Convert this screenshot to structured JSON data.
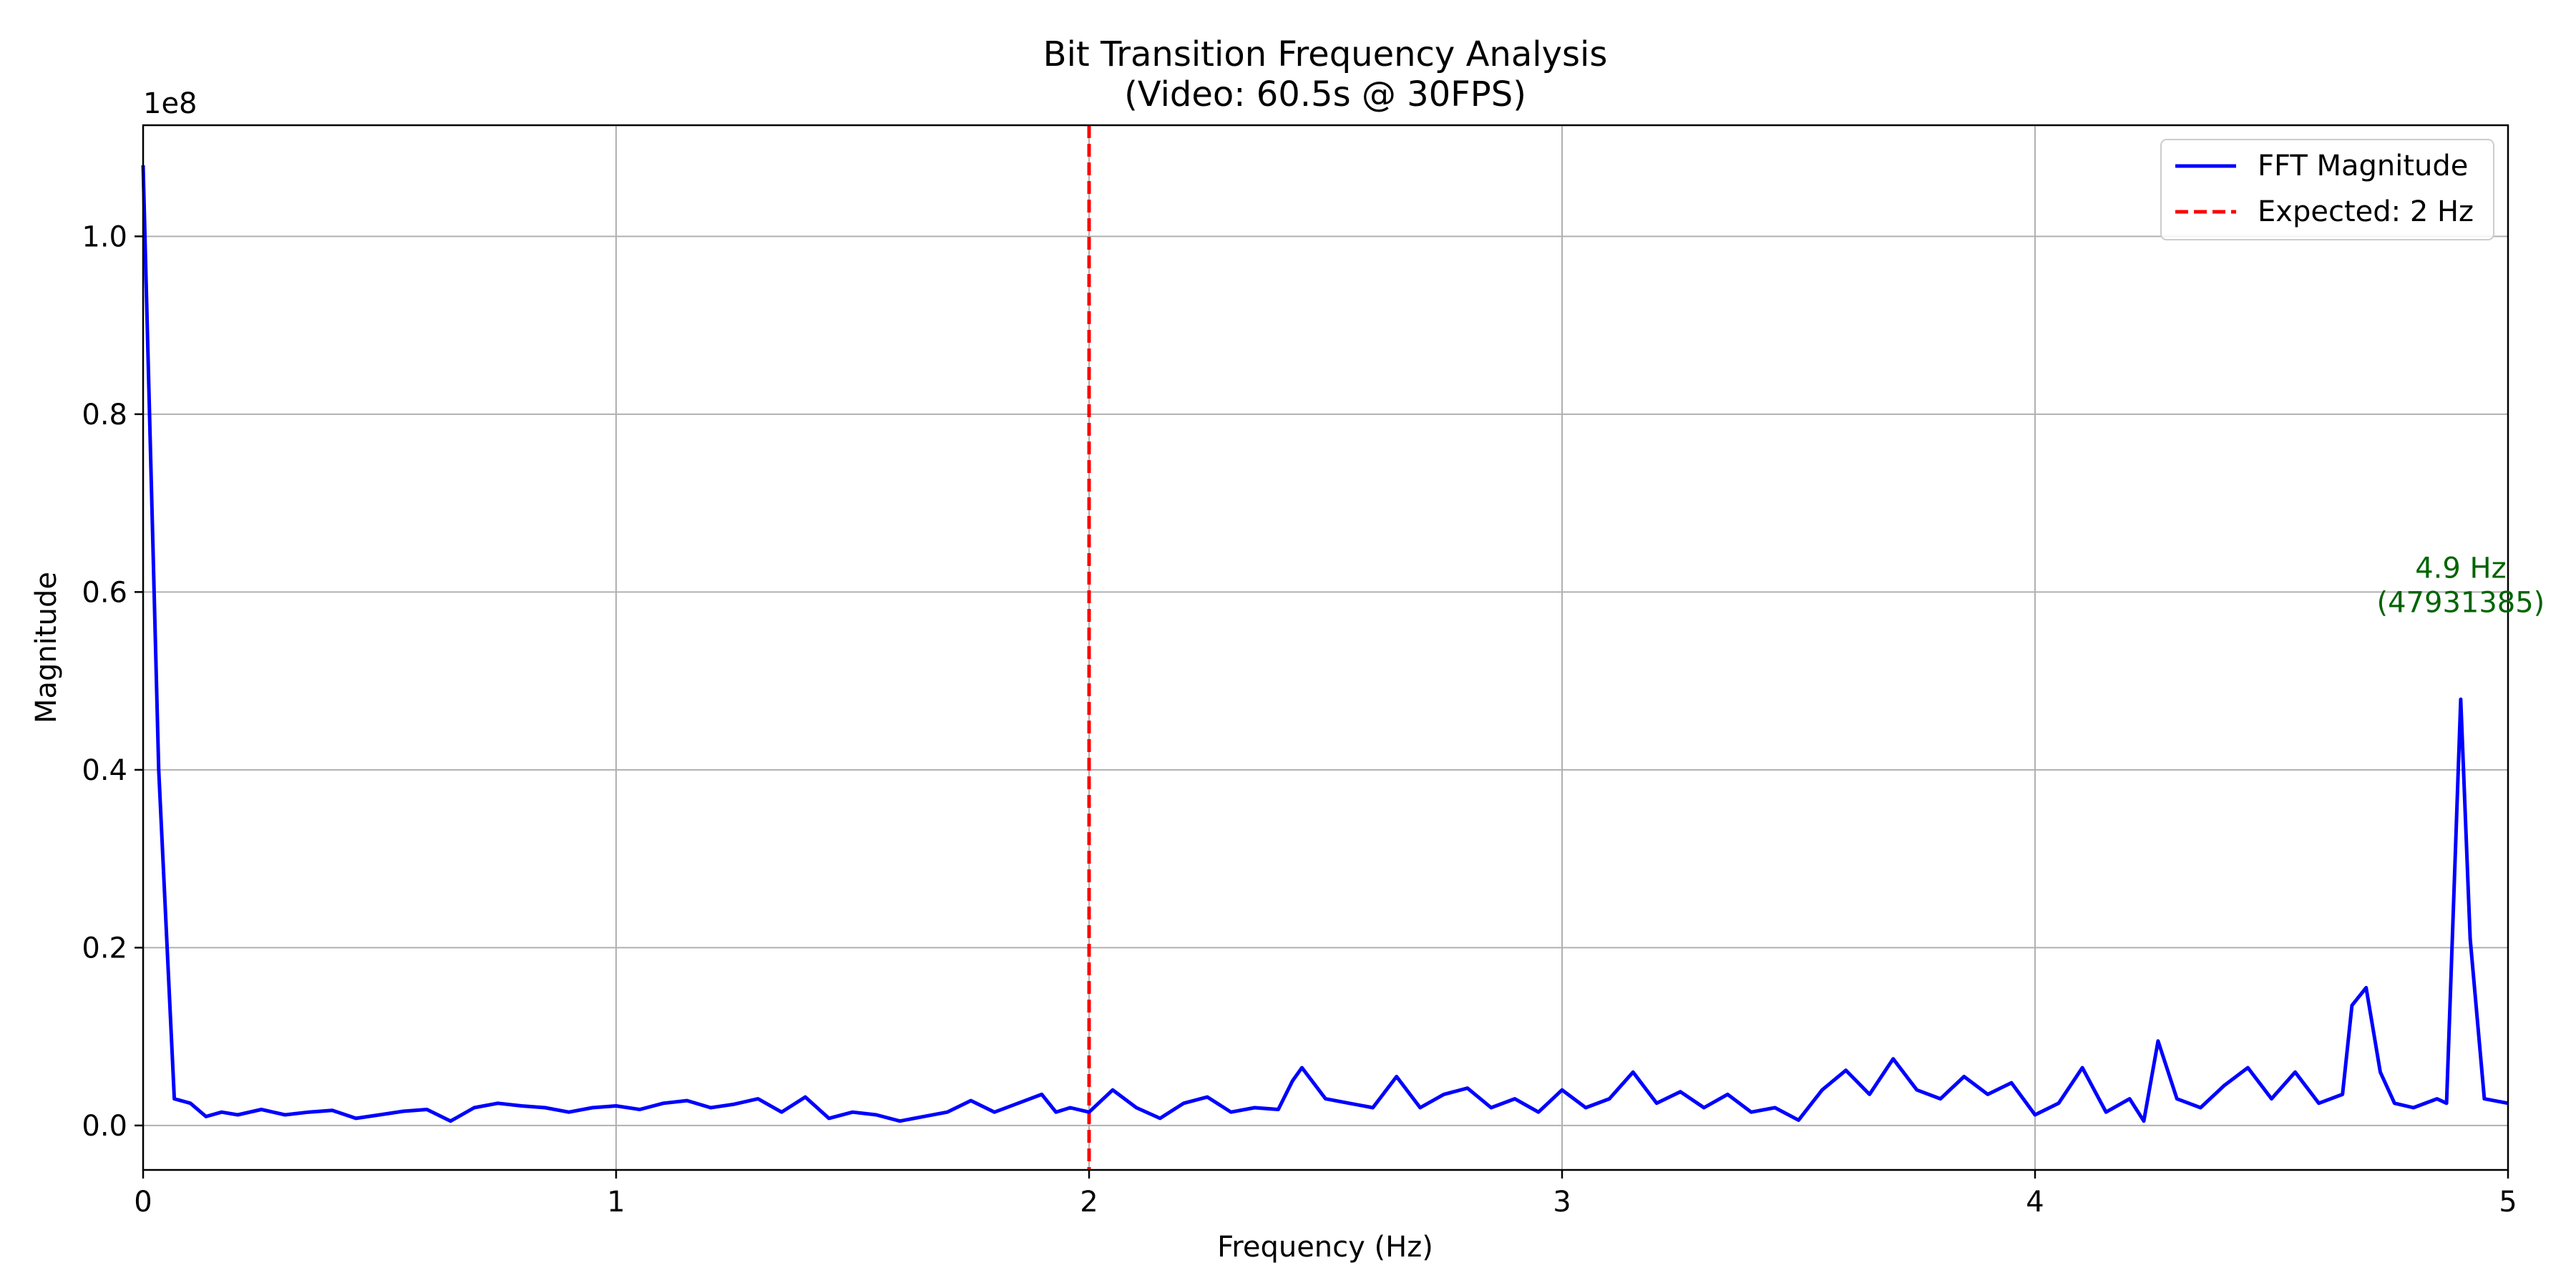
{
  "chart_data": {
    "type": "line",
    "title": "Bit Transition Frequency Analysis",
    "subtitle": "(Video: 60.5s @ 30FPS)",
    "xlabel": "Frequency (Hz)",
    "ylabel": "Magnitude",
    "y_offset_label": "1e8",
    "xlim": [
      0,
      5
    ],
    "ylim": [
      -5000000,
      112500000
    ],
    "xticks": [
      0,
      1,
      2,
      3,
      4,
      5
    ],
    "xtick_labels": [
      "0",
      "1",
      "2",
      "3",
      "4",
      "5"
    ],
    "yticks": [
      0,
      20000000,
      40000000,
      60000000,
      80000000,
      100000000
    ],
    "ytick_labels": [
      "0.0",
      "0.2",
      "0.4",
      "0.6",
      "0.8",
      "1.0"
    ],
    "grid": true,
    "legend_position": "top-right",
    "series": [
      {
        "name": "FFT Magnitude",
        "color": "#0000ff",
        "style": "solid",
        "x": [
          0.0,
          0.033,
          0.066,
          0.1,
          0.133,
          0.166,
          0.2,
          0.25,
          0.3,
          0.35,
          0.4,
          0.45,
          0.5,
          0.55,
          0.6,
          0.65,
          0.7,
          0.75,
          0.8,
          0.85,
          0.9,
          0.95,
          1.0,
          1.05,
          1.1,
          1.15,
          1.2,
          1.25,
          1.3,
          1.35,
          1.4,
          1.45,
          1.5,
          1.55,
          1.6,
          1.65,
          1.7,
          1.75,
          1.8,
          1.85,
          1.9,
          1.93,
          1.96,
          2.0,
          2.05,
          2.1,
          2.15,
          2.2,
          2.25,
          2.3,
          2.35,
          2.4,
          2.43,
          2.45,
          2.5,
          2.55,
          2.6,
          2.65,
          2.7,
          2.75,
          2.8,
          2.85,
          2.9,
          2.95,
          3.0,
          3.05,
          3.1,
          3.15,
          3.2,
          3.25,
          3.3,
          3.35,
          3.4,
          3.45,
          3.5,
          3.55,
          3.6,
          3.65,
          3.7,
          3.75,
          3.8,
          3.85,
          3.9,
          3.95,
          4.0,
          4.05,
          4.1,
          4.15,
          4.2,
          4.23,
          4.26,
          4.3,
          4.35,
          4.4,
          4.45,
          4.5,
          4.55,
          4.6,
          4.65,
          4.67,
          4.7,
          4.73,
          4.76,
          4.8,
          4.85,
          4.87,
          4.9,
          4.92,
          4.95,
          5.0
        ],
        "y": [
          108000000,
          40000000,
          3000000,
          2500000,
          1000000,
          1500000,
          1200000,
          1800000,
          1200000,
          1500000,
          1700000,
          800000,
          1200000,
          1600000,
          1800000,
          500000,
          2000000,
          2500000,
          2200000,
          2000000,
          1500000,
          2000000,
          2200000,
          1800000,
          2500000,
          2800000,
          2000000,
          2400000,
          3000000,
          1500000,
          3200000,
          800000,
          1500000,
          1200000,
          500000,
          1000000,
          1500000,
          2800000,
          1500000,
          2500000,
          3500000,
          1500000,
          2000000,
          1500000,
          4000000,
          2000000,
          800000,
          2500000,
          3200000,
          1500000,
          2000000,
          1800000,
          5000000,
          6500000,
          3000000,
          2500000,
          2000000,
          5500000,
          2000000,
          3500000,
          4200000,
          2000000,
          3000000,
          1500000,
          4000000,
          2000000,
          3000000,
          6000000,
          2500000,
          3800000,
          2000000,
          3500000,
          1500000,
          2000000,
          600000,
          4000000,
          6200000,
          3500000,
          7500000,
          4000000,
          3000000,
          5500000,
          3500000,
          4800000,
          1200000,
          2500000,
          6500000,
          1500000,
          3000000,
          500000,
          9500000,
          3000000,
          2000000,
          4500000,
          6500000,
          3000000,
          6000000,
          2500000,
          3500000,
          13500000,
          15500000,
          6000000,
          2500000,
          2000000,
          3000000,
          2500000,
          47931385,
          21000000,
          3000000,
          2500000
        ]
      }
    ],
    "reference_lines": [
      {
        "name": "Expected: 2 Hz",
        "x": 2,
        "color": "#ff0000",
        "style": "dashed"
      }
    ],
    "annotation": {
      "line1": "4.9 Hz",
      "line2": "(47931385)",
      "x": 4.9,
      "y": 47931385,
      "color": "#006400"
    }
  }
}
